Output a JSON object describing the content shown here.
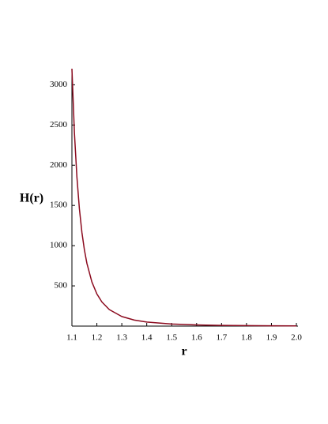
{
  "chart_data": {
    "type": "line",
    "xlabel": "r",
    "ylabel": "H(r)",
    "x": [
      1.1,
      1.11,
      1.12,
      1.13,
      1.14,
      1.15,
      1.16,
      1.18,
      1.2,
      1.22,
      1.25,
      1.3,
      1.35,
      1.4,
      1.5,
      1.6,
      1.7,
      1.8,
      1.9,
      2.0
    ],
    "series": [
      {
        "color": "#8b0a1e",
        "values": [
          3200,
          2404,
          1852,
          1457,
          1166,
          948,
          781,
          549,
          400,
          301,
          205,
          119,
          75,
          50,
          26,
          15,
          9,
          6,
          4,
          3
        ]
      }
    ],
    "xlim": [
      1.1,
      2.0
    ],
    "ylim": [
      0,
      3200
    ],
    "xticks": [
      1.1,
      1.2,
      1.3,
      1.4,
      1.5,
      1.6,
      1.7,
      1.8,
      1.9,
      {
        "value": 2.0,
        "label": "2.0"
      }
    ],
    "yticks": [
      500,
      1000,
      1500,
      2000,
      2500,
      3000
    ]
  }
}
